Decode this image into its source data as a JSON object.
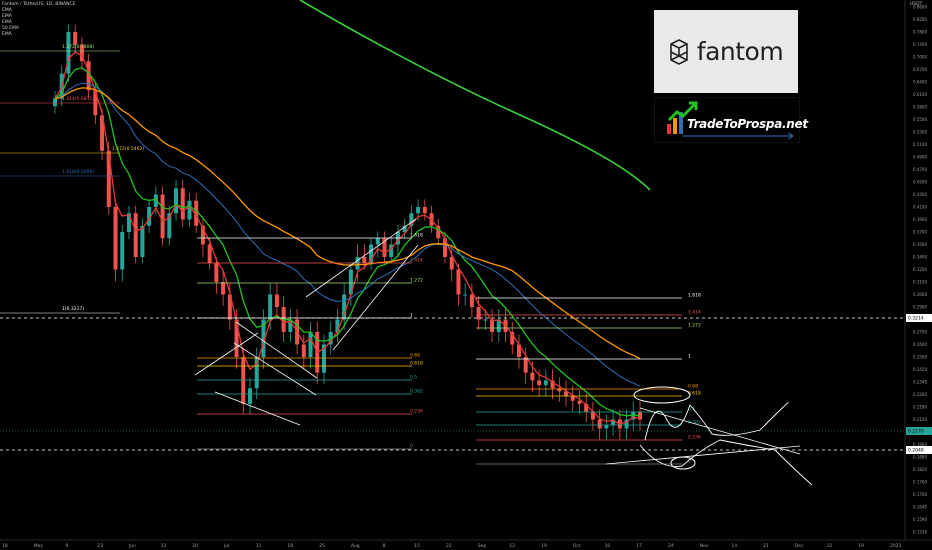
{
  "legend": {
    "symbol": "Fantom / TetherUS, 1D, BINANCE",
    "indicators": [
      "EMA",
      "EMA",
      "EMA",
      "50 EMA",
      "EMA"
    ]
  },
  "brand": {
    "logo_word": "fantom",
    "logo_icon": "fantom-logo-icon",
    "partner_text": "TradeToProspa.net",
    "partner_icon": "rising-bars-arrow-icon"
  },
  "axis_title": "USDT",
  "colors": {
    "background": "#000000",
    "up_candle": "#26a69a",
    "down_candle": "#ef5350",
    "ema_fast": "#e53935",
    "ema_mid": "#21c321",
    "ema_slow": "#ff9800",
    "ema_50": "#2c6fb7",
    "ema_long": "#36d33a"
  },
  "chart_data": {
    "type": "candlestick",
    "title": "Fantom / TetherUS, 1D, BINANCE",
    "x_ticks": [
      "18",
      "May",
      "9",
      "23",
      "Jun",
      "13",
      "20",
      "Jul",
      "11",
      "18",
      "25",
      "Aug",
      "8",
      "15",
      "22",
      "Sep",
      "12",
      "19",
      "Oct",
      "10",
      "17",
      "24",
      "Nov",
      "14",
      "21",
      "Dec",
      "12",
      "19",
      "2023"
    ],
    "y_ticks": [
      "0.8600",
      "0.8200",
      "0.7800",
      "0.7400",
      "0.7000",
      "0.6700",
      "0.6400",
      "0.6100",
      "0.5800",
      "0.5500",
      "0.5300",
      "0.5100",
      "0.4900",
      "0.4700",
      "0.4500",
      "0.4300",
      "0.4100",
      "0.3900",
      "0.3700",
      "0.3500",
      "0.3400",
      "0.3200",
      "0.3100",
      "0.3000",
      "0.2900",
      "0.2800",
      "0.2700",
      "0.2600",
      "0.2500",
      "0.2420",
      "0.2340",
      "0.2260",
      "0.2180",
      "0.2100",
      "0.2030",
      "0.1960",
      "0.1880",
      "0.1820",
      "0.1760",
      "0.1700",
      "0.1640",
      "0.1590",
      "0.1530"
    ],
    "price_labels": [
      {
        "text": "0.3214",
        "value": 0.3214,
        "color": "#ffffff"
      },
      {
        "text": "0.2170",
        "value": 0.217,
        "color": "#26a69a"
      },
      {
        "text": "0.2048",
        "value": 0.2048,
        "color": "#ffffff"
      }
    ],
    "closes": [
      0.6,
      0.66,
      0.78,
      0.74,
      0.69,
      0.62,
      0.56,
      0.5,
      0.41,
      0.32,
      0.37,
      0.4,
      0.34,
      0.38,
      0.41,
      0.43,
      0.36,
      0.4,
      0.44,
      0.39,
      0.42,
      0.38,
      0.35,
      0.33,
      0.31,
      0.3,
      0.28,
      0.25,
      0.22,
      0.23,
      0.25,
      0.28,
      0.3,
      0.29,
      0.27,
      0.28,
      0.26,
      0.25,
      0.27,
      0.24,
      0.26,
      0.27,
      0.28,
      0.3,
      0.32,
      0.34,
      0.33,
      0.35,
      0.36,
      0.34,
      0.35,
      0.37,
      0.38,
      0.4,
      0.41,
      0.4,
      0.38,
      0.36,
      0.34,
      0.32,
      0.3,
      0.3,
      0.29,
      0.28,
      0.28,
      0.27,
      0.28,
      0.27,
      0.26,
      0.25,
      0.24,
      0.235,
      0.232,
      0.235,
      0.23,
      0.228,
      0.225,
      0.222,
      0.22,
      0.215,
      0.21,
      0.205,
      0.207,
      0.21,
      0.205,
      0.21,
      0.215,
      0.21
    ],
    "fib_sets": [
      {
        "label_values": [
          "1.618",
          "1.414",
          "1.272",
          "1",
          "0.68",
          "0.618",
          "0.5",
          "0.382",
          "0.236",
          "0"
        ],
        "colors": [
          "#ffffff",
          "#ef5350",
          "#a5e17a",
          "#ffffff",
          "#ff9800",
          "#ffcc00",
          "#26a69a",
          "#26a69a",
          "#ef5350",
          "#808080"
        ]
      },
      {
        "label_values": [
          "1.618",
          "1.414",
          "1.272",
          "1",
          "0.68",
          "0.618",
          "0.5",
          "0.382",
          "0.236",
          "0"
        ],
        "colors": [
          "#ffffff",
          "#ef5350",
          "#a5e17a",
          "#ffffff",
          "#ff9800",
          "#ffcc00",
          "#26a69a",
          "#26a69a",
          "#ef5350",
          "#808080"
        ]
      }
    ],
    "left_fib_labels": [
      {
        "text": "1.272(0.7808)",
        "color": "#a5e17a"
      },
      {
        "text": "1.414(0.6811)",
        "color": "#ef5350"
      },
      {
        "text": "1.272(0.5462)",
        "color": "#ffcc00"
      },
      {
        "text": "1.618(0.5099)",
        "color": "#2c6fb7"
      },
      {
        "text": "1(0.3217)",
        "color": "#ffffff"
      }
    ],
    "xlabel": "",
    "ylabel": "",
    "grid": false,
    "legend_position": "top-left"
  }
}
